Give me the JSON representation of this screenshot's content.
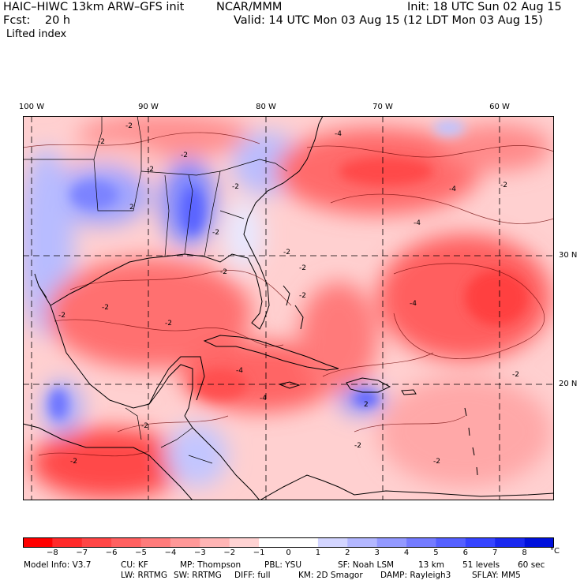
{
  "header": {
    "model": "HAIC–HIWC 13km ARW–GFS init",
    "institution": "NCAR/MMM",
    "init": "Init: 18 UTC Sun 02 Aug 15",
    "fcst": "Fcst:    20 h",
    "valid": "Valid: 14 UTC Mon 03 Aug 15 (12 LDT Mon 03 Aug 15)",
    "field": "Lifted index"
  },
  "longitude_labels": [
    "100 W",
    "90 W",
    "80 W",
    "70 W",
    "60 W"
  ],
  "latitude_labels": [
    "30 N",
    "20 N"
  ],
  "colorbar": {
    "labels": [
      "−8",
      "−7",
      "−6",
      "−5",
      "−4",
      "−3",
      "−2",
      "−1",
      "0",
      "1",
      "2",
      "3",
      "4",
      "5",
      "6",
      "7",
      "8"
    ],
    "unit": "°C",
    "colors": [
      "#ff0000",
      "#ff2a2a",
      "#ff4646",
      "#ff6060",
      "#ff7b7b",
      "#ff9898",
      "#ffb5b5",
      "#ffd3d3",
      "#ffffff",
      "#ffffff",
      "#d3d5ff",
      "#b3b7ff",
      "#9399ff",
      "#747bff",
      "#5560ff",
      "#3644ff",
      "#1a28f0",
      "#0010dc"
    ]
  },
  "contour_labels": [
    "-2",
    "-2",
    "-2",
    "2",
    "-2",
    "-2",
    "-2",
    "-2",
    "-4",
    "-4",
    "-4",
    "-2",
    "-2",
    "-2",
    "-2",
    "-2",
    "-2",
    "-4",
    "-2",
    "-4",
    "-2",
    "-2",
    "-2",
    "-2",
    "2",
    "-2",
    "-4"
  ],
  "model_info": {
    "row1": [
      "Model Info: V3.7",
      "CU: KF",
      "MP: Thompson",
      "PBL: YSU",
      "SF: Noah LSM",
      "13 km",
      "51 levels",
      "60 sec"
    ],
    "row2": [
      "LW: RRTMG",
      "SW: RRTMG",
      "DIFF: full",
      "KM: 2D Smagor",
      "DAMP: Rayleigh3",
      "SFLAY: MM5"
    ]
  }
}
